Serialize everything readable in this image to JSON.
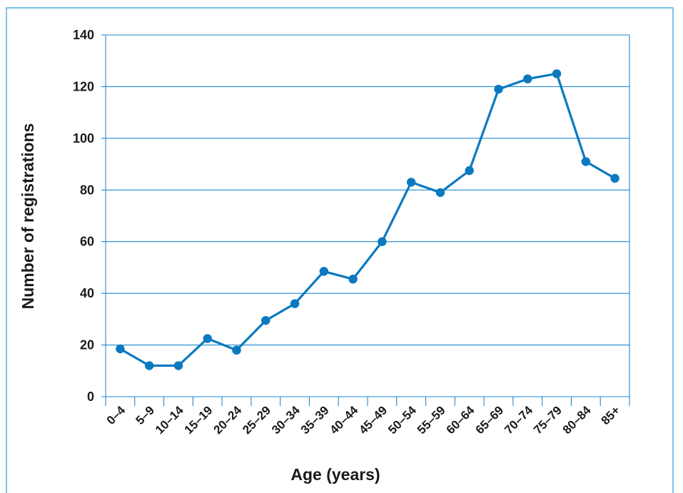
{
  "chart_data": {
    "type": "line",
    "xlabel": "Age (years)",
    "ylabel": "Number of registrations",
    "categories": [
      "0–4",
      "5–9",
      "10–14",
      "15–19",
      "20–24",
      "25–29",
      "30–34",
      "35–39",
      "40–44",
      "45–49",
      "50–54",
      "55–59",
      "60–64",
      "65–69",
      "70–74",
      "75–79",
      "80–84",
      "85+"
    ],
    "values": [
      18.5,
      12,
      12,
      22.5,
      18,
      29.5,
      36,
      48.5,
      45.5,
      60,
      83,
      79,
      87.5,
      119,
      123,
      125,
      91,
      84.5
    ],
    "ylim": [
      0,
      140
    ],
    "yticks": [
      "0",
      "20",
      "40",
      "60",
      "80",
      "100",
      "120",
      "140"
    ],
    "grid": "horizontal",
    "legend": "none"
  },
  "colors": {
    "series": "#0b79bf",
    "grid": "#1f8ad0",
    "frame": "#2a9bd8",
    "text": "#1a1a1a"
  }
}
